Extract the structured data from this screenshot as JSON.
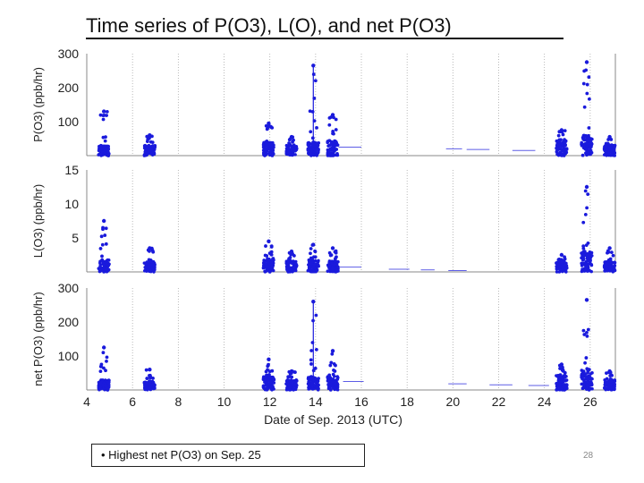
{
  "slide": {
    "title": "Time series of P(O3), L(O), and net P(O3)",
    "note": "• Highest net P(O3) on Sep. 25",
    "page_number": "28"
  },
  "colors": {
    "points": "#1a1adc",
    "axis": "#888888",
    "grid": "#aaaaaa",
    "text": "#222222"
  },
  "chart_data": {
    "type": "scatter",
    "xlabel": "Date of Sep. 2013  (UTC)",
    "xlim": [
      4,
      27.1
    ],
    "x_ticks": [
      4,
      6,
      8,
      10,
      12,
      14,
      16,
      18,
      20,
      22,
      24,
      26
    ],
    "panels": [
      {
        "ylabel": "P(O3)  (ppb/hr)",
        "ylim": [
          0,
          300
        ],
        "y_ticks": [
          100,
          200,
          300
        ],
        "flights": [
          {
            "day": 4.75,
            "peak": 130,
            "level": 30
          },
          {
            "day": 6.75,
            "peak": 60,
            "level": 30
          },
          {
            "day": 11.95,
            "peak": 95,
            "level": 40
          },
          {
            "day": 12.95,
            "peak": 55,
            "level": 30
          },
          {
            "day": 13.9,
            "peak": 265,
            "level": 40
          },
          {
            "day": 14.75,
            "peak": 120,
            "level": 45
          },
          {
            "day": 24.75,
            "peak": 75,
            "level": 45
          },
          {
            "day": 25.85,
            "peak": 275,
            "level": 60
          },
          {
            "day": 26.85,
            "peak": 55,
            "level": 30
          }
        ],
        "dashes": [
          [
            15,
            16,
            25
          ],
          [
            19.7,
            20.4,
            20
          ],
          [
            20.6,
            21.6,
            18
          ],
          [
            22.6,
            23.6,
            15
          ]
        ],
        "spikes": [
          [
            13.9,
            265
          ]
        ]
      },
      {
        "ylabel": "L(O3)  (ppb/hr)",
        "ylim": [
          0,
          15
        ],
        "y_ticks": [
          5,
          10,
          15
        ],
        "flights": [
          {
            "day": 4.75,
            "peak": 7.5,
            "level": 1.8
          },
          {
            "day": 6.75,
            "peak": 3.5,
            "level": 1.5
          },
          {
            "day": 11.95,
            "peak": 4.5,
            "level": 2.0
          },
          {
            "day": 12.95,
            "peak": 3.0,
            "level": 1.6
          },
          {
            "day": 13.9,
            "peak": 4.0,
            "level": 1.8
          },
          {
            "day": 14.75,
            "peak": 3.5,
            "level": 1.6
          },
          {
            "day": 24.75,
            "peak": 2.5,
            "level": 1.4
          },
          {
            "day": 25.85,
            "peak": 12.5,
            "level": 3.0
          },
          {
            "day": 26.85,
            "peak": 3.5,
            "level": 1.5
          }
        ],
        "dashes": [
          [
            15,
            16,
            0.7
          ],
          [
            17.2,
            18.1,
            0.4
          ],
          [
            18.6,
            19.2,
            0.3
          ],
          [
            19.8,
            20.6,
            0.2
          ]
        ],
        "spikes": []
      },
      {
        "ylabel": "net P(O3)  (ppb/hr)",
        "ylim": [
          0,
          300
        ],
        "y_ticks": [
          100,
          200,
          300
        ],
        "flights": [
          {
            "day": 4.75,
            "peak": 125,
            "level": 30
          },
          {
            "day": 6.75,
            "peak": 60,
            "level": 25
          },
          {
            "day": 11.95,
            "peak": 90,
            "level": 40
          },
          {
            "day": 12.95,
            "peak": 55,
            "level": 30
          },
          {
            "day": 13.9,
            "peak": 260,
            "level": 40
          },
          {
            "day": 14.75,
            "peak": 115,
            "level": 40
          },
          {
            "day": 24.75,
            "peak": 75,
            "level": 45
          },
          {
            "day": 25.85,
            "peak": 265,
            "level": 60
          },
          {
            "day": 26.85,
            "peak": 55,
            "level": 30
          }
        ],
        "dashes": [
          [
            15.2,
            16.1,
            25
          ],
          [
            19.8,
            20.6,
            18
          ],
          [
            21.6,
            22.6,
            15
          ],
          [
            23.3,
            24.2,
            13
          ]
        ],
        "spikes": [
          [
            13.9,
            260
          ]
        ]
      }
    ]
  }
}
